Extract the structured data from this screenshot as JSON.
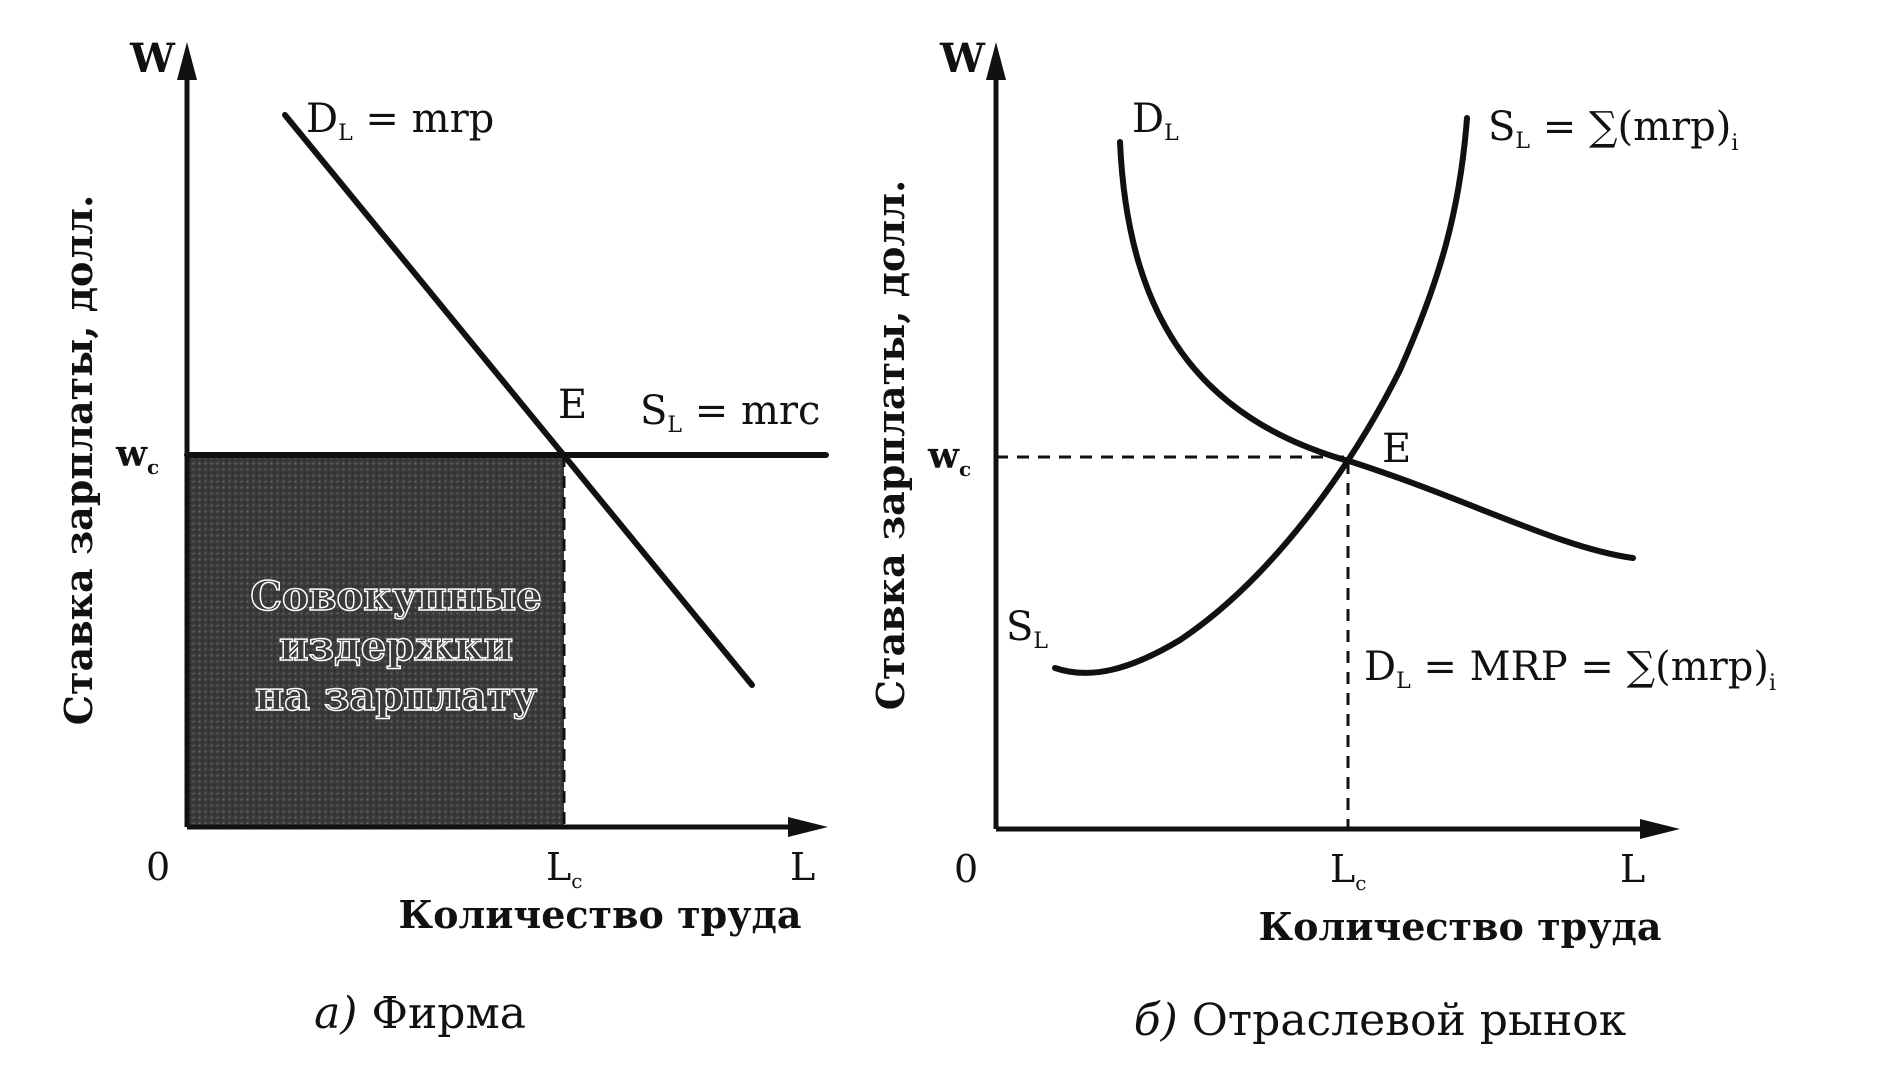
{
  "panel_a": {
    "y_axis_symbol": "W",
    "x_axis_symbol": "L",
    "origin": "0",
    "y_axis_label": "Ставка зарплаты, долл.",
    "x_axis_label": "Количество труда",
    "wage_tick": {
      "main": "w",
      "sub": "c"
    },
    "labor_tick": {
      "main": "L",
      "sub": "c"
    },
    "demand_label": {
      "main": "D",
      "sub": "L",
      "rest": " = mrp"
    },
    "supply_label": {
      "main": "S",
      "sub": "L",
      "rest": " = mrc"
    },
    "equilibrium_label": "E",
    "area_label_lines": [
      "Совокупные",
      "издержки",
      "на зарплату"
    ],
    "caption_letter": "а)",
    "caption_text": " Фирма"
  },
  "panel_b": {
    "y_axis_symbol": "W",
    "x_axis_symbol": "L",
    "origin": "0",
    "y_axis_label": "Ставка зарплаты, долл.",
    "x_axis_label": "Количество труда",
    "wage_tick": {
      "main": "w",
      "sub": "c"
    },
    "labor_tick": {
      "main": "L",
      "sub": "c"
    },
    "demand_top_label": {
      "main": "D",
      "sub": "L"
    },
    "supply_top_label": {
      "main": "S",
      "sub": "L",
      "rest": " = ∑(mrp)",
      "tail": "i"
    },
    "supply_low_label": {
      "main": "S",
      "sub": "L"
    },
    "demand_eq_label": {
      "main": "D",
      "sub": "L",
      "rest": " = MRP = ∑(mrp)",
      "tail": "i"
    },
    "equilibrium_label": "E",
    "caption_letter": "б)",
    "caption_text": " Отраслевой рынок"
  },
  "colors": {
    "ink": "#111111",
    "area_fill": "#3a3a3a",
    "area_text_fill": "#ffffff"
  }
}
